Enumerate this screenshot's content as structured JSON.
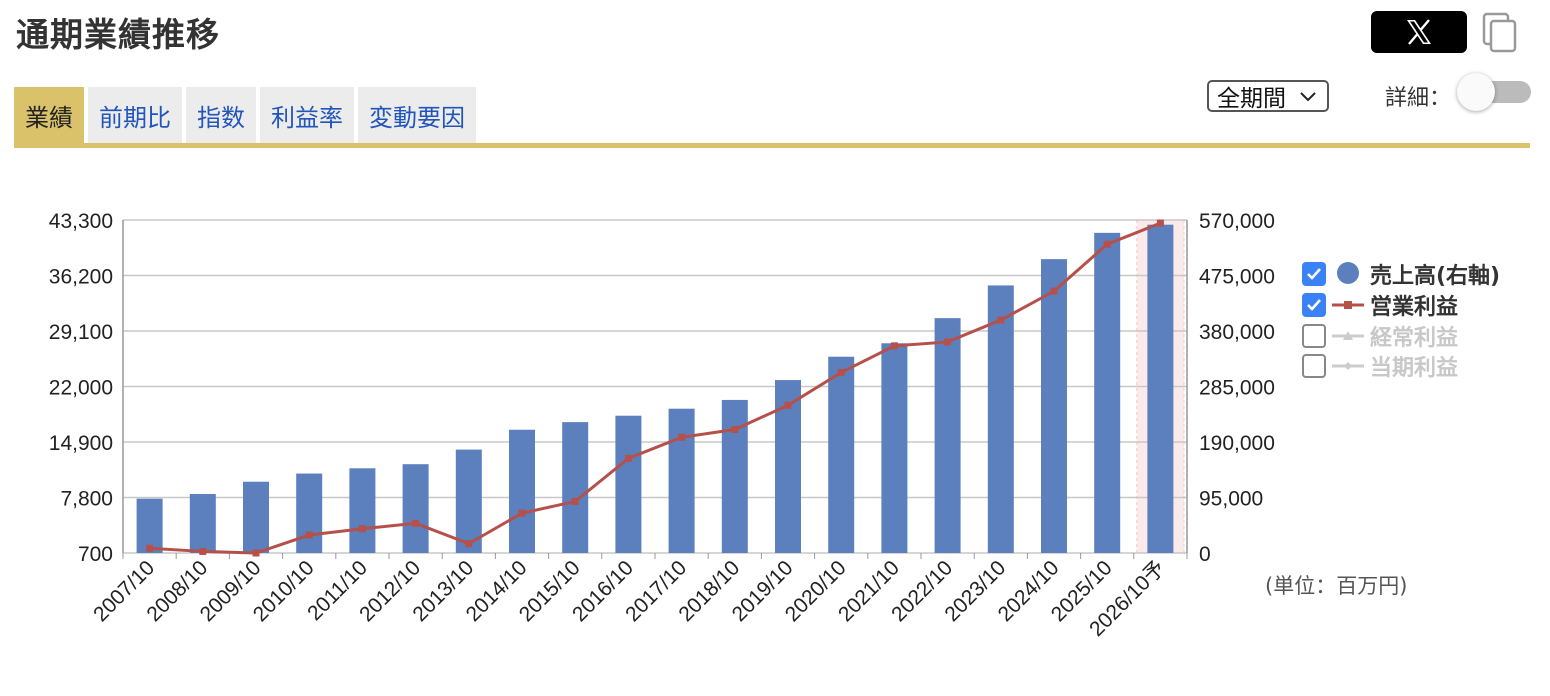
{
  "header": {
    "title": "通期業績推移"
  },
  "tabs": [
    {
      "label": "業績"
    },
    {
      "label": "前期比"
    },
    {
      "label": "指数"
    },
    {
      "label": "利益率"
    },
    {
      "label": "変動要因"
    }
  ],
  "period_select": {
    "value": "全期間"
  },
  "detail": {
    "label": "詳細："
  },
  "unit_note": "(単位：百万円)",
  "legend": [
    {
      "label": "売上高(右軸)",
      "checked": true,
      "color": "#5b80bd"
    },
    {
      "label": "営業利益",
      "checked": true,
      "color": "#b5504b"
    },
    {
      "label": "経常利益",
      "checked": false,
      "color": "#cccccc"
    },
    {
      "label": "当期利益",
      "checked": false,
      "color": "#cccccc"
    }
  ],
  "chart_data": {
    "type": "bar",
    "categories": [
      "2007/10",
      "2008/10",
      "2009/10",
      "2010/10",
      "2011/10",
      "2012/10",
      "2013/10",
      "2014/10",
      "2015/10",
      "2016/10",
      "2017/10",
      "2018/10",
      "2019/10",
      "2020/10",
      "2021/10",
      "2022/10",
      "2023/10",
      "2024/10",
      "2025/10",
      "2026/10予"
    ],
    "forecast_index": 19,
    "left_axis": {
      "min": 700,
      "max": 43300,
      "ticks": [
        "43,300",
        "36,200",
        "29,100",
        "22,000",
        "14,900",
        "7,800",
        "700"
      ]
    },
    "right_axis": {
      "min": 0,
      "max": 570000,
      "ticks": [
        "570,000",
        "475,000",
        "380,000",
        "285,000",
        "190,000",
        "95,000",
        "0"
      ]
    },
    "series": [
      {
        "name": "売上高(右軸)",
        "type": "bar",
        "axis": "right",
        "color": "#5b80bd",
        "values": [
          93000,
          101000,
          122000,
          136000,
          145000,
          152000,
          177000,
          211000,
          224000,
          235000,
          247000,
          262000,
          296000,
          336000,
          359000,
          402000,
          458000,
          503000,
          548000,
          562000
        ]
      },
      {
        "name": "営業利益",
        "type": "line",
        "axis": "left",
        "color": "#b5504b",
        "values": [
          1300,
          900,
          700,
          3000,
          3800,
          4500,
          1900,
          5800,
          7300,
          12800,
          15500,
          16500,
          19600,
          23800,
          27200,
          27700,
          30500,
          34200,
          40200,
          42900
        ]
      }
    ],
    "grid": true
  }
}
